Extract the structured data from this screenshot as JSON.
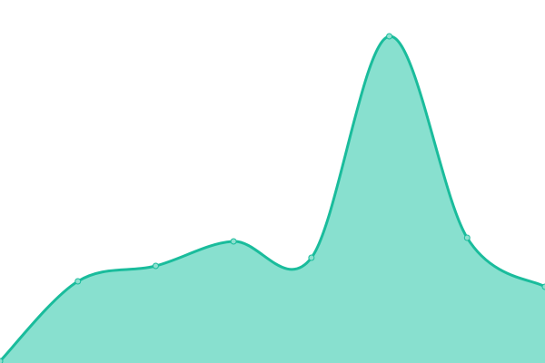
{
  "chart_data": {
    "type": "area",
    "title": "",
    "xlabel": "",
    "ylabel": "",
    "x": [
      0,
      1,
      2,
      3,
      4,
      5,
      6,
      7
    ],
    "values": [
      2,
      90,
      107,
      134,
      116,
      360,
      138,
      84
    ],
    "ylim": [
      0,
      400
    ],
    "grid": false,
    "legend": "none",
    "curve": "smooth",
    "colors": {
      "line": "#1abc9c",
      "fill": "#88e0cf",
      "point_fill": "#8ee0cf"
    }
  }
}
